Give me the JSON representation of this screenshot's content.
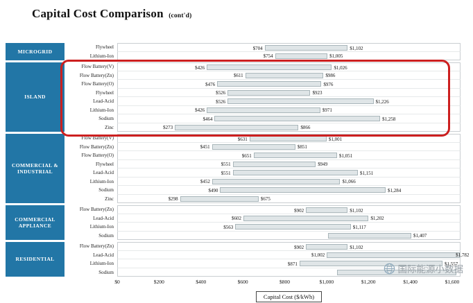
{
  "title": {
    "text": "Capital Cost Comparison",
    "suffix": "(cont'd)"
  },
  "colors": {
    "sidebar": "#2276a6",
    "bar_fill": "#dfe5e7",
    "bar_border": "#a9b6ba",
    "highlight": "#cc1f1f",
    "watermark_text": "#9aa2a8"
  },
  "axis": {
    "scale_max": 1640,
    "label": "Capital Cost ($/kWh)",
    "ticks": [
      {
        "label": "$0",
        "value": 0
      },
      {
        "label": "$200",
        "value": 200
      },
      {
        "label": "$400",
        "value": 400
      },
      {
        "label": "$600",
        "value": 600
      },
      {
        "label": "$800",
        "value": 800
      },
      {
        "label": "$1,000",
        "value": 1000
      },
      {
        "label": "$1,200",
        "value": 1200
      },
      {
        "label": "$1,400",
        "value": 1400
      },
      {
        "label": "$1,600",
        "value": 1600
      }
    ]
  },
  "watermark": {
    "text": "国际能源小数据",
    "icon": "globe-icon"
  },
  "highlight_section": "ISLAND",
  "chart_data": {
    "type": "bar",
    "subtype": "horizontal-range",
    "title": "Capital Cost Comparison (cont'd)",
    "xlabel": "Capital Cost ($/kWh)",
    "xlim": [
      0,
      1600
    ],
    "unit": "$/kWh",
    "legend": null,
    "grid": false,
    "sections": [
      {
        "name": "MICROGRID",
        "rows": [
          {
            "tech": "Flywheel",
            "min": 704,
            "max": 1102,
            "min_label": "$704",
            "max_label": "$1,102"
          },
          {
            "tech": "Lithium-Ion",
            "min": 754,
            "max": 1005,
            "min_label": "$754",
            "max_label": "$1,005"
          }
        ]
      },
      {
        "name": "ISLAND",
        "rows": [
          {
            "tech": "Flow Battery(V)",
            "min": 426,
            "max": 1026,
            "min_label": "$426",
            "max_label": "$1,026"
          },
          {
            "tech": "Flow Battery(Zn)",
            "min": 611,
            "max": 986,
            "min_label": "$611",
            "max_label": "$986"
          },
          {
            "tech": "Flow Battery(O)",
            "min": 476,
            "max": 976,
            "min_label": "$476",
            "max_label": "$976"
          },
          {
            "tech": "Flywheel",
            "min": 526,
            "max": 923,
            "min_label": "$526",
            "max_label": "$923"
          },
          {
            "tech": "Lead-Acid",
            "min": 526,
            "max": 1226,
            "min_label": "$526",
            "max_label": "$1,226"
          },
          {
            "tech": "Lithium-Ion",
            "min": 426,
            "max": 971,
            "min_label": "$426",
            "max_label": "$971"
          },
          {
            "tech": "Sodium",
            "min": 464,
            "max": 1258,
            "min_label": "$464",
            "max_label": "$1,258"
          },
          {
            "tech": "Zinc",
            "min": 273,
            "max": 866,
            "min_label": "$273",
            "max_label": "$866"
          }
        ]
      },
      {
        "name": "COMMERCIAL & INDUSTRIAL",
        "rows": [
          {
            "tech": "Flow Battery(V)",
            "min": 631,
            "max": 1001,
            "min_label": "$631",
            "max_label": "$1,001"
          },
          {
            "tech": "Flow Battery(Zn)",
            "min": 451,
            "max": 851,
            "min_label": "$451",
            "max_label": "$851"
          },
          {
            "tech": "Flow Battery(O)",
            "min": 651,
            "max": 1051,
            "min_label": "$651",
            "max_label": "$1,051"
          },
          {
            "tech": "Flywheel",
            "min": 551,
            "max": 949,
            "min_label": "$551",
            "max_label": "$949"
          },
          {
            "tech": "Lead-Acid",
            "min": 551,
            "max": 1151,
            "min_label": "$551",
            "max_label": "$1,151"
          },
          {
            "tech": "Lithium-Ion",
            "min": 452,
            "max": 1066,
            "min_label": "$452",
            "max_label": "$1,066"
          },
          {
            "tech": "Sodium",
            "min": 490,
            "max": 1284,
            "min_label": "$490",
            "max_label": "$1,284"
          },
          {
            "tech": "Zinc",
            "min": 298,
            "max": 675,
            "min_label": "$298",
            "max_label": "$675"
          }
        ]
      },
      {
        "name": "COMMERCIAL APPLIANCE",
        "rows": [
          {
            "tech": "Flow Battery(Zn)",
            "min": 902,
            "max": 1102,
            "min_label": "$902",
            "max_label": "$1,102"
          },
          {
            "tech": "Lead-Acid",
            "min": 602,
            "max": 1202,
            "min_label": "$602",
            "max_label": "$1,202"
          },
          {
            "tech": "Lithium-Ion",
            "min": 563,
            "max": 1117,
            "min_label": "$563",
            "max_label": "$1,117"
          },
          {
            "tech": "Sodium",
            "min": 1007,
            "max": 1407,
            "min_label": "",
            "max_label": "$1,407"
          }
        ]
      },
      {
        "name": "RESIDENTIAL",
        "rows": [
          {
            "tech": "Flow Battery(Zn)",
            "min": 902,
            "max": 1102,
            "min_label": "$902",
            "max_label": "$1,102"
          },
          {
            "tech": "Lead-Acid",
            "min": 1002,
            "max": 1782,
            "min_label": "$1,002",
            "max_label": "$1,782"
          },
          {
            "tech": "Lithium-Ion",
            "min": 871,
            "max": 1557,
            "min_label": "$871",
            "max_label": "$1,557"
          },
          {
            "tech": "Sodium",
            "min": 1050,
            "max": 1625,
            "min_label": "",
            "max_label": ""
          }
        ]
      }
    ]
  }
}
